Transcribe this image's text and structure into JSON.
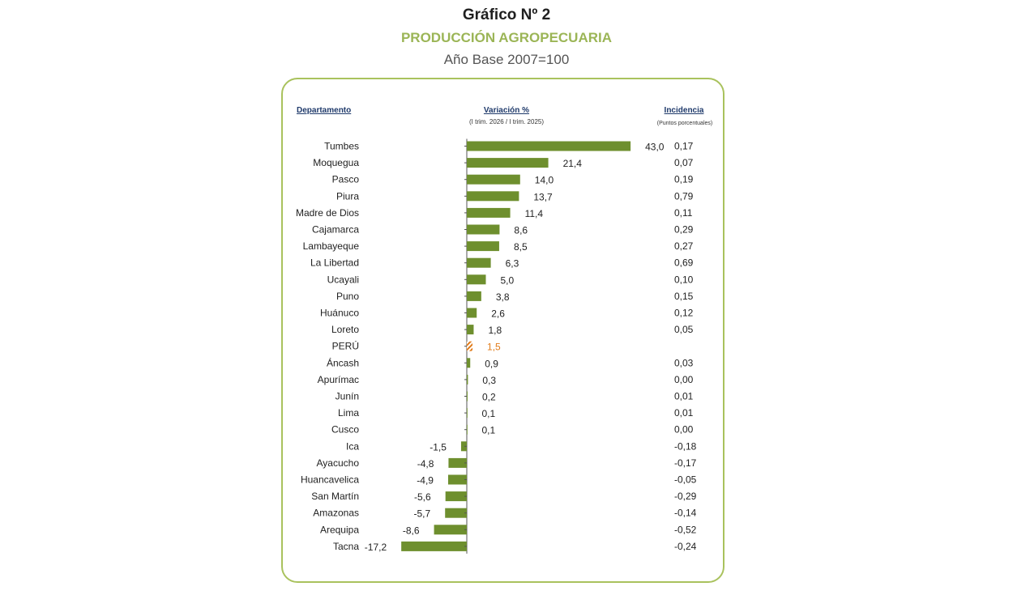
{
  "header": {
    "title": "Gráfico Nº 2",
    "subtitle": "PRODUCCIÓN AGROPECUARIA",
    "base": "Año Base 2007=100"
  },
  "columns": {
    "departamento": "Departamento",
    "variacion": "Variación %",
    "variacion_sub": "(I trim. 2026 / I trim. 2025)",
    "incidencia": "Incidencia",
    "incidencia_sub": "(Puntos porcentuales)"
  },
  "colors": {
    "bar": "#6e8f2e",
    "highlight": "#e07b1a",
    "frame": "#a9c25d",
    "subtitle": "#9bb556"
  },
  "chart_data": {
    "type": "bar",
    "orientation": "horizontal",
    "title": "PRODUCCIÓN AGROPECUARIA",
    "categories": [
      "Tumbes",
      "Moquegua",
      "Pasco",
      "Piura",
      "Madre de Dios",
      "Cajamarca",
      "Lambayeque",
      "La Libertad",
      "Ucayali",
      "Puno",
      "Huánuco",
      "Loreto",
      "PERÚ",
      "Áncash",
      "Apurímac",
      "Junín",
      "Lima",
      "Cusco",
      "Ica",
      "Ayacucho",
      "Huancavelica",
      "San Martín",
      "Amazonas",
      "Arequipa",
      "Tacna"
    ],
    "values": [
      43.0,
      21.4,
      14.0,
      13.7,
      11.4,
      8.6,
      8.5,
      6.3,
      5.0,
      3.8,
      2.6,
      1.8,
      1.5,
      0.9,
      0.3,
      0.2,
      0.1,
      0.1,
      -1.5,
      -4.8,
      -4.9,
      -5.6,
      -5.7,
      -8.6,
      -17.2
    ],
    "value_labels": [
      "43,0",
      "21,4",
      "14,0",
      "13,7",
      "11,4",
      "8,6",
      "8,5",
      "6,3",
      "5,0",
      "3,8",
      "2,6",
      "1,8",
      "1,5",
      "0,9",
      "0,3",
      "0,2",
      "0,1",
      "0,1",
      "-1,5",
      "-4,8",
      "-4,9",
      "-5,6",
      "-5,7",
      "-8,6",
      "-17,2"
    ],
    "incidencia": [
      "0,17",
      "0,07",
      "0,19",
      "0,79",
      "0,11",
      "0,29",
      "0,27",
      "0,69",
      "0,10",
      "0,15",
      "0,12",
      "0,05",
      "",
      "0,03",
      "0,00",
      "0,01",
      "0,01",
      "0,00",
      "-0,18",
      "-0,17",
      "-0,05",
      "-0,29",
      "-0,14",
      "-0,52",
      "-0,24"
    ],
    "highlight_category": "PERÚ",
    "xlabel": "Variación %",
    "ylabel": "Departamento",
    "grid": false
  }
}
